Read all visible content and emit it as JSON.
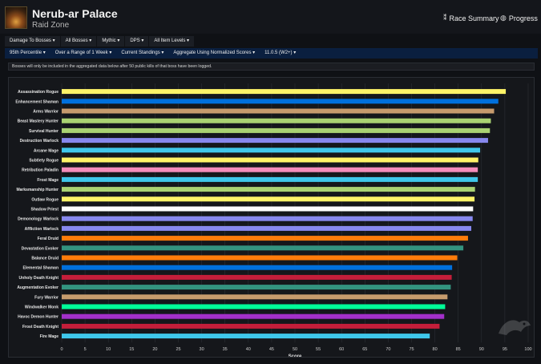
{
  "header": {
    "title": "Nerub-ar Palace",
    "subtitle": "Raid Zone",
    "race_summary": "Race Summary",
    "progress": "Progress"
  },
  "filters_row1": [
    "Damage To Bosses",
    "All Bosses",
    "Mythic",
    "DPS",
    "All Item Levels"
  ],
  "filters_row2": [
    "95th Percentile",
    "Over a Range of 1 Week",
    "Current Standings",
    "Aggregate Using Normalized Scores",
    "11.0.5 (W2+)"
  ],
  "notice": "Bosses will only be included in the aggregated data below after 50 public kills of that boss have been logged.",
  "chart_data": {
    "type": "bar",
    "orientation": "horizontal",
    "categories": [
      "Assassination Rogue",
      "Enhancement Shaman",
      "Arms Warrior",
      "Beast Mastery Hunter",
      "Survival Hunter",
      "Destruction Warlock",
      "Arcane Mage",
      "Subtlety Rogue",
      "Retribution Paladin",
      "Frost Mage",
      "Marksmanship Hunter",
      "Outlaw Rogue",
      "Shadow Priest",
      "Demonology Warlock",
      "Affliction Warlock",
      "Feral Druid",
      "Devastation Evoker",
      "Balance Druid",
      "Elemental Shaman",
      "Unholy Death Knight",
      "Augmentation Evoker",
      "Fury Warrior",
      "Windwalker Monk",
      "Havoc Demon Hunter",
      "Frost Death Knight",
      "Fire Mage"
    ],
    "values": [
      95.2,
      93.6,
      92.7,
      92.0,
      91.8,
      91.4,
      89.7,
      89.3,
      89.2,
      89.2,
      88.6,
      88.5,
      88.2,
      88.1,
      87.8,
      87.1,
      86.1,
      84.8,
      83.7,
      83.6,
      83.4,
      82.7,
      82.2,
      82.0,
      81.0,
      78.9
    ],
    "colors": [
      "#FFF468",
      "#0070DD",
      "#C69B6D",
      "#AAD372",
      "#AAD372",
      "#8788EE",
      "#3FC7EB",
      "#FFF468",
      "#F48CBA",
      "#3FC7EB",
      "#AAD372",
      "#FFF468",
      "#FFFFFF",
      "#8788EE",
      "#8788EE",
      "#FF7C0A",
      "#33937F",
      "#FF7C0A",
      "#0070DD",
      "#C41E3A",
      "#33937F",
      "#C69B6D",
      "#00FF98",
      "#A330C9",
      "#C41E3A",
      "#3FC7EB"
    ],
    "xlabel": "Score",
    "xlim": [
      0,
      100
    ],
    "xticks": [
      0,
      5,
      10,
      15,
      20,
      25,
      30,
      35,
      40,
      45,
      50,
      55,
      60,
      65,
      70,
      75,
      80,
      85,
      90,
      95,
      100
    ],
    "grid": true
  }
}
